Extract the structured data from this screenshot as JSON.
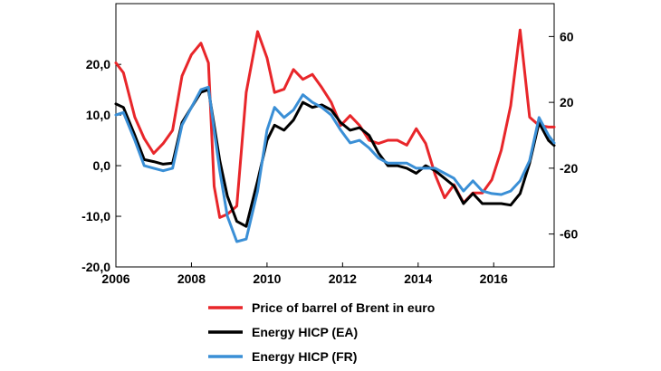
{
  "chart_data": {
    "type": "line",
    "title": "",
    "xlabel": "",
    "ylabel_left": "",
    "ylabel_right": "",
    "x_range": [
      2006,
      2017.6
    ],
    "x_ticks": [
      2006,
      2008,
      2010,
      2012,
      2014,
      2016
    ],
    "x_tick_labels": [
      "2006",
      "2008",
      "2010",
      "2012",
      "2014",
      "2016"
    ],
    "ylim_left": [
      -20,
      32
    ],
    "y_ticks_left": [
      -20,
      -10,
      0,
      10,
      20
    ],
    "y_tick_labels_left": [
      "-20,0",
      "-10,0",
      "0,0",
      "10,0",
      "20,0"
    ],
    "ylim_right": [
      -80,
      80
    ],
    "y_ticks_right": [
      -60,
      -20,
      20,
      60
    ],
    "y_tick_labels_right": [
      "-60",
      "-20",
      "20",
      "60"
    ],
    "grid": false,
    "legend_position": "bottom-center",
    "series": [
      {
        "name": "Price of barrel of Brent in euro",
        "axis": "right",
        "color": "#e8262a",
        "x": [
          2006.0,
          2006.2,
          2006.5,
          2006.75,
          2007.0,
          2007.25,
          2007.5,
          2007.75,
          2008.0,
          2008.25,
          2008.45,
          2008.6,
          2008.75,
          2008.95,
          2009.2,
          2009.45,
          2009.75,
          2010.0,
          2010.2,
          2010.45,
          2010.7,
          2010.95,
          2011.2,
          2011.45,
          2011.7,
          2011.95,
          2012.2,
          2012.45,
          2012.7,
          2012.95,
          2013.2,
          2013.45,
          2013.7,
          2013.95,
          2014.2,
          2014.45,
          2014.7,
          2014.95,
          2015.2,
          2015.45,
          2015.7,
          2015.95,
          2016.2,
          2016.45,
          2016.7,
          2016.95,
          2017.2,
          2017.45,
          2017.6
        ],
        "values": [
          44,
          38,
          11,
          -2,
          -11,
          -5,
          3,
          36,
          49,
          56,
          44,
          -31,
          -50,
          -48,
          -43,
          26,
          63,
          47,
          26,
          28,
          40,
          34,
          37,
          29,
          20,
          6,
          12,
          6,
          -3,
          -5,
          -3,
          -3,
          -6,
          4,
          -5,
          -24,
          -38,
          -30,
          -41,
          -35,
          -35,
          -27,
          -9,
          18,
          64,
          11,
          6,
          5,
          5
        ]
      },
      {
        "name": "Energy HICP (EA)",
        "axis": "left",
        "color": "#000000",
        "x": [
          2006.0,
          2006.2,
          2006.5,
          2006.75,
          2007.0,
          2007.25,
          2007.5,
          2007.75,
          2008.0,
          2008.25,
          2008.45,
          2008.6,
          2008.75,
          2008.95,
          2009.2,
          2009.45,
          2009.75,
          2010.0,
          2010.2,
          2010.45,
          2010.7,
          2010.95,
          2011.2,
          2011.45,
          2011.7,
          2011.95,
          2012.2,
          2012.45,
          2012.7,
          2012.95,
          2013.2,
          2013.45,
          2013.7,
          2013.95,
          2014.2,
          2014.45,
          2014.7,
          2014.95,
          2015.2,
          2015.45,
          2015.7,
          2015.95,
          2016.2,
          2016.45,
          2016.7,
          2016.95,
          2017.2,
          2017.45,
          2017.6
        ],
        "values": [
          12.2,
          11.5,
          6.0,
          1.2,
          0.8,
          0.3,
          0.5,
          8.5,
          11.5,
          14.5,
          15.0,
          8.0,
          1.0,
          -6.0,
          -11.0,
          -12.0,
          -3.0,
          5.0,
          8.0,
          7.0,
          9.0,
          12.5,
          11.5,
          12.0,
          11.0,
          8.5,
          7.0,
          7.5,
          6.0,
          2.5,
          0.0,
          0.0,
          -0.5,
          -1.5,
          0.0,
          -1.0,
          -2.5,
          -4.0,
          -7.5,
          -5.5,
          -7.5,
          -7.5,
          -7.5,
          -7.8,
          -5.5,
          0.5,
          8.5,
          5.0,
          4.0
        ]
      },
      {
        "name": "Energy HICP (FR)",
        "axis": "left",
        "color": "#3a8fd6",
        "x": [
          2006.0,
          2006.2,
          2006.5,
          2006.75,
          2007.0,
          2007.25,
          2007.5,
          2007.75,
          2008.0,
          2008.25,
          2008.45,
          2008.6,
          2008.75,
          2008.95,
          2009.2,
          2009.45,
          2009.75,
          2010.0,
          2010.2,
          2010.45,
          2010.7,
          2010.95,
          2011.2,
          2011.45,
          2011.7,
          2011.95,
          2012.2,
          2012.45,
          2012.7,
          2012.95,
          2013.2,
          2013.45,
          2013.7,
          2013.95,
          2014.2,
          2014.45,
          2014.7,
          2014.95,
          2015.2,
          2015.45,
          2015.7,
          2015.95,
          2016.2,
          2016.45,
          2016.7,
          2016.95,
          2017.2,
          2017.45,
          2017.6
        ],
        "values": [
          10.0,
          10.5,
          5.0,
          0.0,
          -0.5,
          -1.0,
          -0.5,
          8.0,
          11.5,
          15.0,
          15.5,
          7.0,
          -1.0,
          -10.0,
          -15.0,
          -14.5,
          -5.0,
          7.0,
          11.5,
          9.5,
          11.0,
          14.0,
          12.5,
          11.5,
          10.0,
          7.0,
          4.5,
          5.0,
          3.5,
          1.5,
          0.5,
          0.5,
          0.5,
          -0.5,
          -0.5,
          -0.5,
          -1.5,
          -2.5,
          -5.0,
          -3.0,
          -5.0,
          -5.5,
          -5.7,
          -5.0,
          -3.0,
          1.0,
          9.5,
          6.0,
          4.5
        ]
      }
    ]
  }
}
